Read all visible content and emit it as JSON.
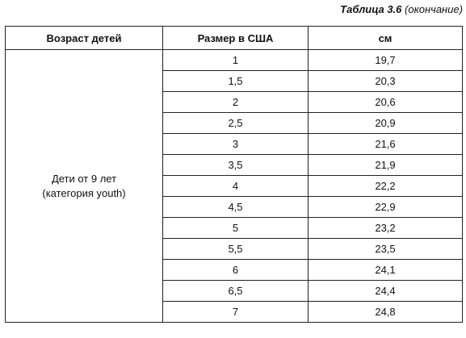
{
  "caption": {
    "title": "Таблица 3.6",
    "note": "(окончание)"
  },
  "table": {
    "headers": [
      "Возраст детей",
      "Размер в США",
      "см"
    ],
    "age_group": {
      "line1": "Дети от 9 лет",
      "line2": "(категория youth)"
    },
    "rows": [
      {
        "us": "1",
        "cm": "19,7"
      },
      {
        "us": "1,5",
        "cm": "20,3"
      },
      {
        "us": "2",
        "cm": "20,6"
      },
      {
        "us": "2,5",
        "cm": "20,9"
      },
      {
        "us": "3",
        "cm": "21,6"
      },
      {
        "us": "3,5",
        "cm": "21,9"
      },
      {
        "us": "4",
        "cm": "22,2"
      },
      {
        "us": "4,5",
        "cm": "22,9"
      },
      {
        "us": "5",
        "cm": "23,2"
      },
      {
        "us": "5,5",
        "cm": "23,5"
      },
      {
        "us": "6",
        "cm": "24,1"
      },
      {
        "us": "6,5",
        "cm": "24,4"
      },
      {
        "us": "7",
        "cm": "24,8"
      }
    ]
  }
}
